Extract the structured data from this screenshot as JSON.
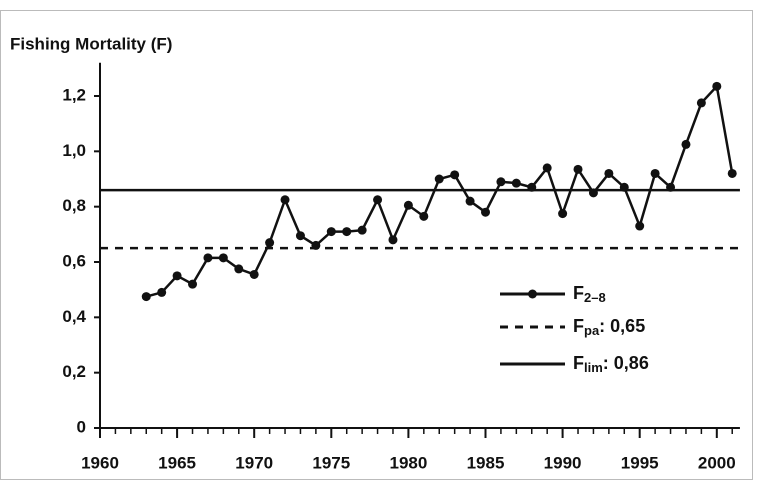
{
  "chart_data": {
    "type": "line",
    "y_label": "Fishing Mortality (F)",
    "x": [
      1963,
      1964,
      1965,
      1966,
      1967,
      1968,
      1969,
      1970,
      1971,
      1972,
      1973,
      1974,
      1975,
      1976,
      1977,
      1978,
      1979,
      1980,
      1981,
      1982,
      1983,
      1984,
      1985,
      1986,
      1987,
      1988,
      1989,
      1990,
      1991,
      1992,
      1993,
      1994,
      1995,
      1996,
      1997,
      1998,
      1999,
      2000,
      2001
    ],
    "series": [
      {
        "name": "F",
        "name_sub": "2–8",
        "color": "#111111",
        "values": [
          0.475,
          0.49,
          0.55,
          0.52,
          0.615,
          0.615,
          0.575,
          0.555,
          0.67,
          0.825,
          0.695,
          0.66,
          0.71,
          0.71,
          0.715,
          0.825,
          0.68,
          0.805,
          0.765,
          0.9,
          0.915,
          0.82,
          0.78,
          0.89,
          0.885,
          0.87,
          0.94,
          0.775,
          0.935,
          0.85,
          0.92,
          0.87,
          0.73,
          0.92,
          0.87,
          1.025,
          1.175,
          1.235,
          0.92
        ]
      }
    ],
    "reference_lines": [
      {
        "name": "F",
        "name_sub": "pa",
        "label_rest": ": 0,65",
        "value": 0.65,
        "style": "dashed",
        "color": "#111111"
      },
      {
        "name": "F",
        "name_sub": "lim",
        "label_rest": ": 0,86",
        "value": 0.86,
        "style": "solid",
        "color": "#111111"
      }
    ],
    "xlim": [
      1960,
      2001.5
    ],
    "xticks": [
      1960,
      1965,
      1970,
      1975,
      1980,
      1985,
      1990,
      1995,
      2000
    ],
    "ylim": [
      0,
      1.32
    ],
    "yticks": [
      0,
      {
        "value": 0.2,
        "label": "0,2"
      },
      {
        "value": 0.4,
        "label": "0,4"
      },
      {
        "value": 0.6,
        "label": "0,6"
      },
      {
        "value": 0.8,
        "label": "0,8"
      },
      {
        "value": 1.0,
        "label": "1,0"
      },
      {
        "value": 1.2,
        "label": "1,2"
      }
    ]
  }
}
